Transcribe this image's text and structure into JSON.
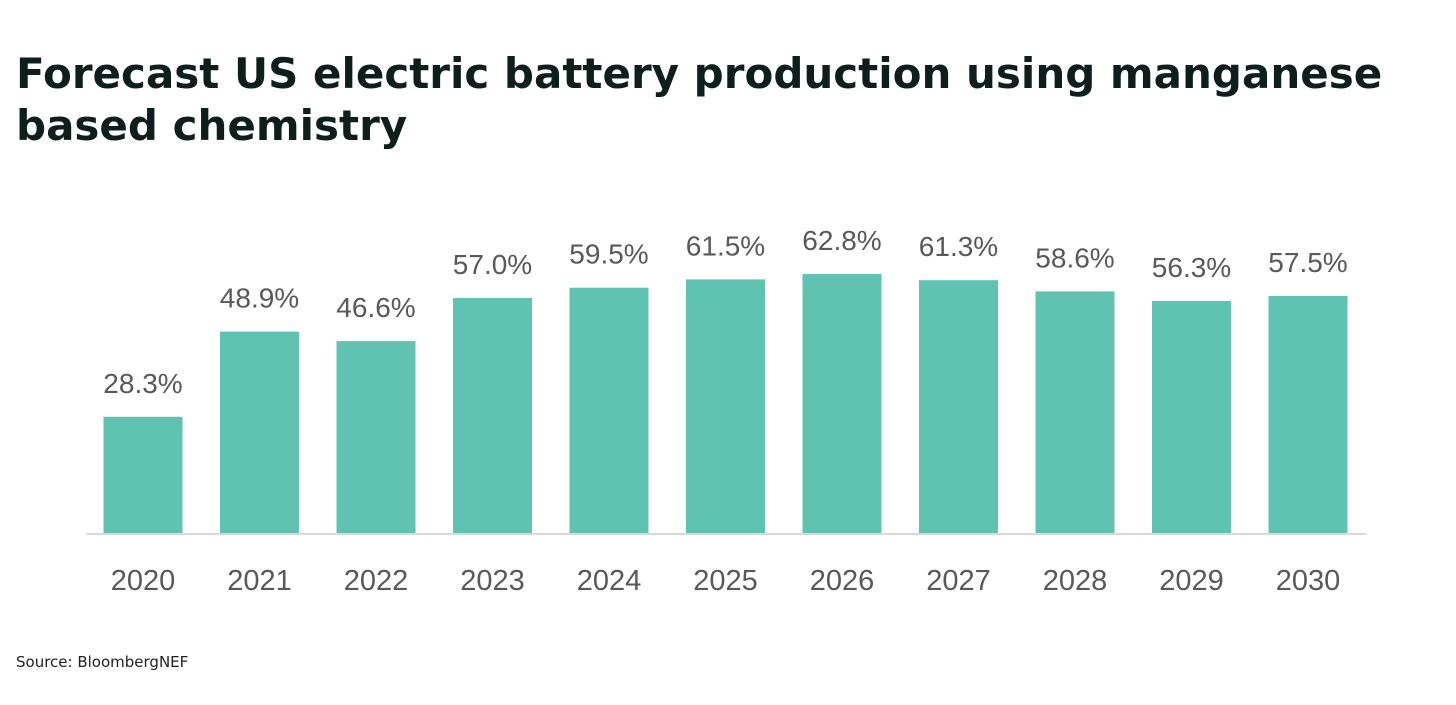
{
  "title": "Forecast US electric battery production using manganese based chemistry",
  "source": "Source: BloombergNEF",
  "colors": {
    "bar": "#60c3b1",
    "axis": "#d9d9d9",
    "label": "#595959",
    "title": "#0d1f1c"
  },
  "chart_data": {
    "type": "bar",
    "title": "Forecast US electric battery production using manganese based chemistry",
    "categories": [
      "2020",
      "2021",
      "2022",
      "2023",
      "2024",
      "2025",
      "2026",
      "2027",
      "2028",
      "2029",
      "2030"
    ],
    "values": [
      28.3,
      48.9,
      46.6,
      57.0,
      59.5,
      61.5,
      62.8,
      61.3,
      58.6,
      56.3,
      57.5
    ],
    "data_labels": [
      "28.3%",
      "48.9%",
      "46.6%",
      "57.0%",
      "59.5%",
      "61.5%",
      "62.8%",
      "61.3%",
      "58.6%",
      "56.3%",
      "57.5%"
    ],
    "unit": "%",
    "xlabel": "",
    "ylabel": "",
    "ylim": [
      0,
      65
    ],
    "grid": false,
    "legend": "none"
  }
}
